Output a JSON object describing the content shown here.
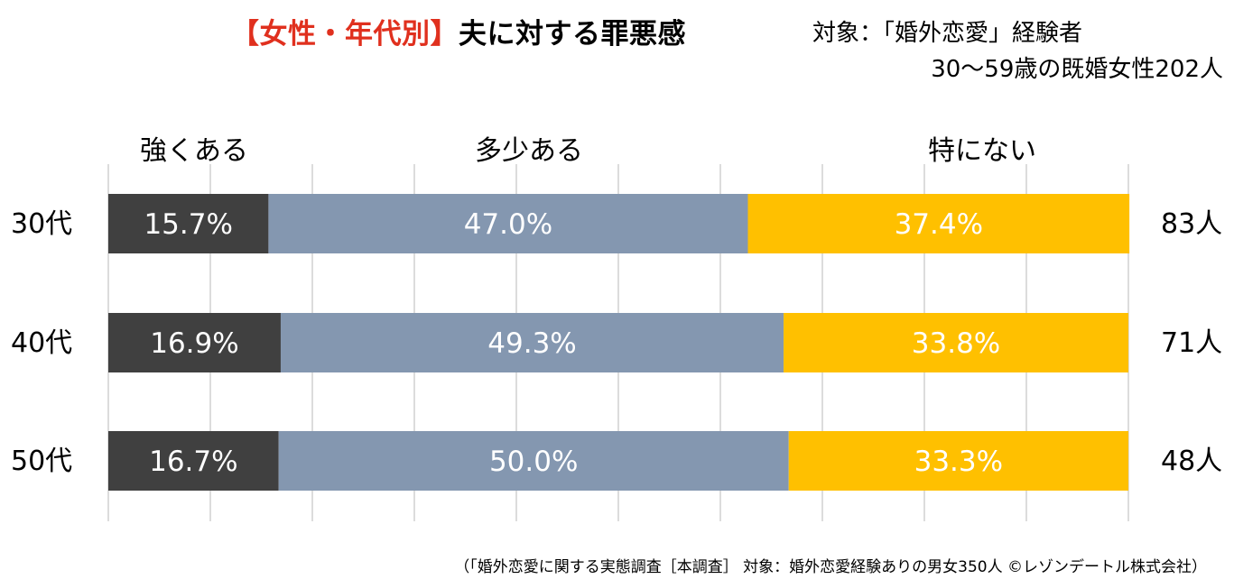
{
  "title": {
    "accent": "【女性・年代別】",
    "main": "夫に対する罪悪感"
  },
  "target_line1": "対象：「婚外恋愛」経験者",
  "target_line2": "30～59歳の既婚女性202人",
  "footer": "（「婚外恋愛に関する実態調査［本調査］ 対象：婚外恋愛経験ありの男女350人 ©レゾンデートル株式会社）",
  "chart_data": {
    "type": "bar",
    "orientation": "horizontal",
    "stacked": "100%",
    "categories": [
      "30代",
      "40代",
      "50代"
    ],
    "series": [
      {
        "name": "強くある",
        "values": [
          15.7,
          16.9,
          16.7
        ],
        "labels": [
          "15.7%",
          "16.9%",
          "16.7%"
        ],
        "color": "#404040"
      },
      {
        "name": "多少ある",
        "values": [
          47.0,
          49.3,
          50.0
        ],
        "labels": [
          "47.0%",
          "49.3%",
          "50.0%"
        ],
        "color": "#8497b0"
      },
      {
        "name": "特にない",
        "values": [
          37.4,
          33.8,
          33.3
        ],
        "labels": [
          "37.4%",
          "33.8%",
          "33.3%"
        ],
        "color": "#ffc000"
      }
    ],
    "counts": [
      "83人",
      "71人",
      "48人"
    ],
    "xlim": [
      0,
      100
    ],
    "grid": true
  }
}
